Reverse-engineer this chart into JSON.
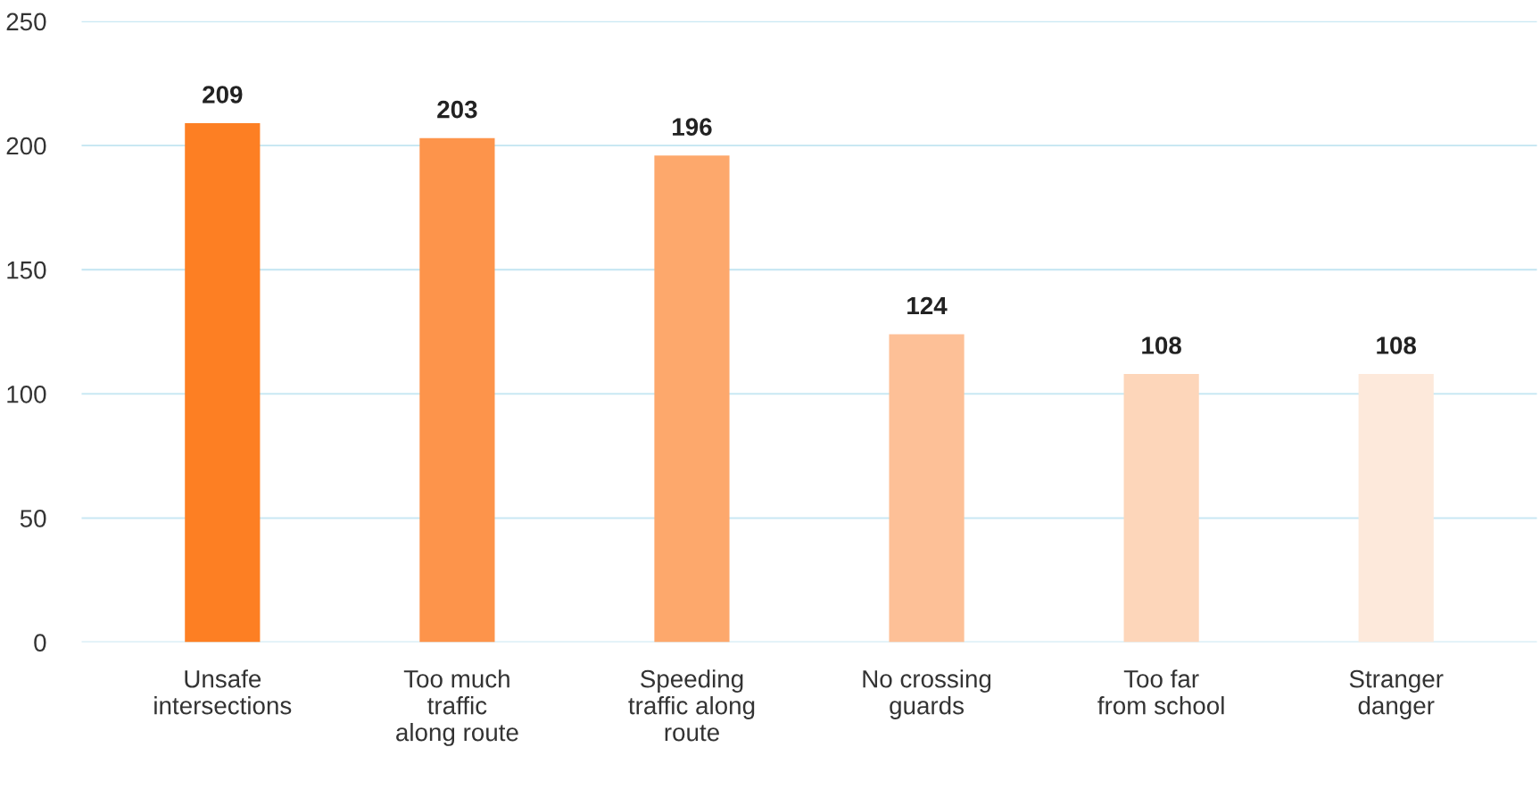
{
  "chart_data": {
    "type": "bar",
    "categories": [
      "Unsafe\nintersections",
      "Too much\ntraffic\nalong route",
      "Speeding\ntraffic along\nroute",
      "No crossing\nguards",
      "Too far\nfrom school",
      "Stranger\ndanger"
    ],
    "values": [
      209,
      203,
      196,
      124,
      108,
      108
    ],
    "colors": [
      "#fd7f23",
      "#fd944b",
      "#fda86c",
      "#fdc097",
      "#fdd6ba",
      "#fde9db"
    ],
    "ylim": [
      0,
      250
    ],
    "yticks": [
      0,
      50,
      100,
      150,
      200,
      250
    ],
    "grid": "y",
    "data_labels": true
  }
}
